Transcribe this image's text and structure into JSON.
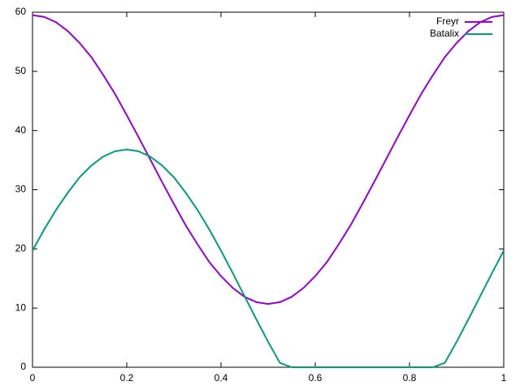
{
  "chart_data": {
    "type": "line",
    "x": [
      0,
      0.025,
      0.05,
      0.075,
      0.1,
      0.125,
      0.15,
      0.175,
      0.2,
      0.225,
      0.25,
      0.275,
      0.3,
      0.325,
      0.35,
      0.375,
      0.4,
      0.425,
      0.45,
      0.475,
      0.5,
      0.525,
      0.55,
      0.575,
      0.6,
      0.625,
      0.65,
      0.675,
      0.7,
      0.725,
      0.75,
      0.775,
      0.8,
      0.825,
      0.85,
      0.875,
      0.9,
      0.925,
      0.95,
      0.975,
      1
    ],
    "series": [
      {
        "name": "Freyr",
        "color": "#9400d3",
        "values": [
          59.5,
          59.2,
          58.3,
          56.8,
          54.8,
          52.4,
          49.4,
          46.2,
          42.6,
          38.9,
          35.1,
          31.3,
          27.6,
          24.0,
          20.8,
          17.8,
          15.4,
          13.4,
          11.9,
          11.0,
          10.7,
          11.0,
          11.9,
          13.4,
          15.4,
          17.8,
          20.8,
          24.0,
          27.6,
          31.3,
          35.1,
          38.9,
          42.6,
          46.2,
          49.4,
          52.4,
          54.8,
          56.8,
          58.3,
          59.2,
          59.5
        ]
      },
      {
        "name": "Batalix",
        "color": "#009e73",
        "values": [
          19.7,
          23.3,
          26.6,
          29.5,
          32.1,
          34.1,
          35.6,
          36.5,
          36.8,
          36.5,
          35.6,
          34.1,
          32.1,
          29.5,
          26.6,
          23.3,
          19.7,
          15.9,
          12.0,
          8.1,
          4.3,
          0.74,
          0,
          0,
          0,
          0,
          0,
          0,
          0,
          0,
          0,
          0,
          0,
          0,
          0,
          0.74,
          4.3,
          8.1,
          12.0,
          15.9,
          19.7
        ]
      }
    ],
    "xlim": [
      0,
      1
    ],
    "xticks": [
      0,
      0.2,
      0.4,
      0.6,
      0.8,
      1
    ],
    "ylim": [
      0,
      60
    ],
    "yticks": [
      0,
      10,
      20,
      30,
      40,
      50,
      60
    ],
    "grid": false,
    "legend": "top-right"
  }
}
